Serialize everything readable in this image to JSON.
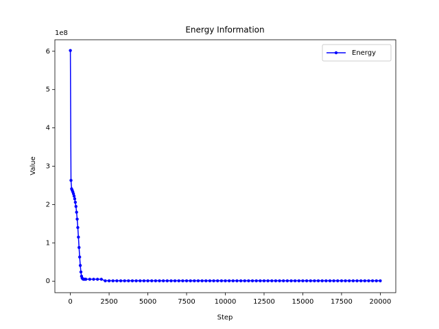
{
  "chart_data": {
    "type": "line",
    "title": "Energy Information",
    "x_label": "Step",
    "y_label": "Value",
    "y_offset_label": "1e8",
    "x": [
      0,
      40,
      80,
      120,
      160,
      200,
      240,
      280,
      320,
      360,
      400,
      440,
      480,
      520,
      560,
      600,
      640,
      680,
      720,
      760,
      800,
      840,
      880,
      920,
      960,
      1000,
      1250,
      1500,
      1750,
      2000,
      2250,
      2500,
      2750,
      3000,
      3250,
      3500,
      3750,
      4000,
      4250,
      4500,
      4750,
      5000,
      5250,
      5500,
      5750,
      6000,
      6250,
      6500,
      6750,
      7000,
      7250,
      7500,
      7750,
      8000,
      8250,
      8500,
      8750,
      9000,
      9250,
      9500,
      9750,
      10000,
      10250,
      10500,
      10750,
      11000,
      11250,
      11500,
      11750,
      12000,
      12250,
      12500,
      12750,
      13000,
      13250,
      13500,
      13750,
      14000,
      14250,
      14500,
      14750,
      15000,
      15250,
      15500,
      15750,
      16000,
      16250,
      16500,
      16750,
      17000,
      17250,
      17500,
      17750,
      18000,
      18250,
      18500,
      18750,
      19000,
      19250,
      19500,
      19750,
      20000
    ],
    "series": [
      {
        "name": "Energy",
        "color": "#0000ff",
        "values": [
          6.02,
          2.63,
          2.41,
          2.37,
          2.33,
          2.28,
          2.22,
          2.15,
          2.06,
          1.95,
          1.8,
          1.62,
          1.4,
          1.15,
          0.88,
          0.63,
          0.41,
          0.24,
          0.13,
          0.08,
          0.06,
          0.05,
          0.05,
          0.05,
          0.05,
          0.05,
          0.05,
          0.05,
          0.05,
          0.05,
          0.01,
          0.01,
          0.01,
          0.01,
          0.01,
          0.01,
          0.01,
          0.01,
          0.01,
          0.01,
          0.01,
          0.01,
          0.01,
          0.01,
          0.01,
          0.01,
          0.01,
          0.01,
          0.01,
          0.01,
          0.01,
          0.01,
          0.01,
          0.01,
          0.01,
          0.01,
          0.01,
          0.01,
          0.01,
          0.01,
          0.01,
          0.01,
          0.01,
          0.01,
          0.01,
          0.01,
          0.01,
          0.01,
          0.01,
          0.01,
          0.01,
          0.01,
          0.01,
          0.01,
          0.01,
          0.01,
          0.01,
          0.01,
          0.01,
          0.01,
          0.01,
          0.01,
          0.01,
          0.01,
          0.01,
          0.01,
          0.01,
          0.01,
          0.01,
          0.01,
          0.01,
          0.01,
          0.01,
          0.01,
          0.01,
          0.01,
          0.01,
          0.01,
          0.01,
          0.01,
          0.01,
          0.01
        ]
      }
    ],
    "xlim": [
      -1000,
      21000
    ],
    "xticks": [
      0,
      2500,
      5000,
      7500,
      10000,
      12500,
      15000,
      17500,
      20000
    ],
    "ylim": [
      -0.3,
      6.3
    ],
    "yticks": [
      0,
      1,
      2,
      3,
      4,
      5,
      6
    ],
    "legend": "upper right",
    "grid": false
  }
}
